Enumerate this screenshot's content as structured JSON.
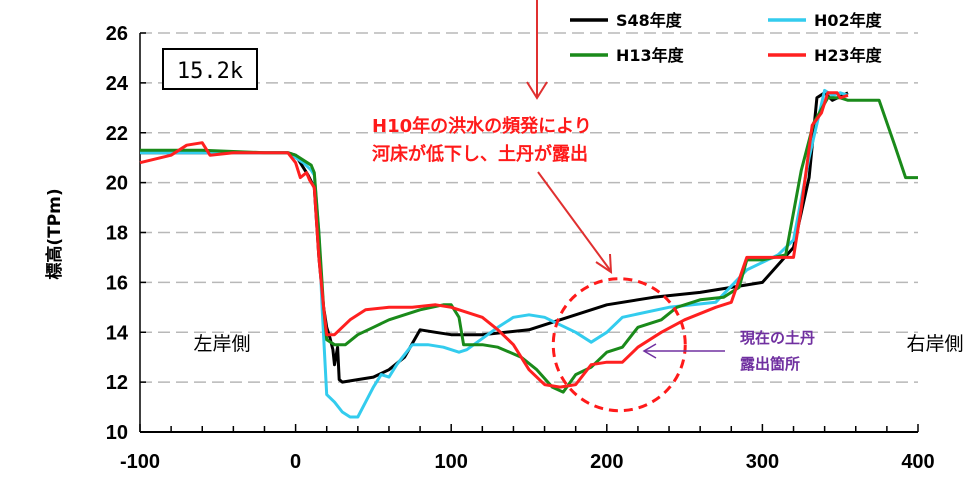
{
  "chart_data": {
    "type": "line",
    "xlim": [
      -100,
      400
    ],
    "ylim": [
      10,
      26
    ],
    "xticks": [
      -100,
      0,
      100,
      200,
      300,
      400
    ],
    "yticks": [
      10,
      12,
      14,
      16,
      18,
      20,
      22,
      24,
      26
    ],
    "ylabel": "標高(TPm)",
    "xlabel": "",
    "grid": "horizontal dashed",
    "legend_position": "top-right",
    "section_label": "15.2k",
    "left_bank_label": "左岸側",
    "right_bank_label": "右岸側",
    "annotation_red_line1": "H10年の洪水の頻発により",
    "annotation_red_line2": "河床が低下し、土丹が露出",
    "annotation_purple_line1": "現在の土丹",
    "annotation_purple_line2": "露出箇所",
    "highlight_circle_center": [
      208,
      13.5
    ],
    "series": [
      {
        "name": "S48年度",
        "color": "#000000",
        "points": [
          [
            -100,
            21.2
          ],
          [
            -60,
            21.2
          ],
          [
            -20,
            21.2
          ],
          [
            -5,
            21.2
          ],
          [
            0,
            21.1
          ],
          [
            5,
            20.6
          ],
          [
            8,
            20.3
          ],
          [
            12,
            19.8
          ],
          [
            15,
            17
          ],
          [
            18,
            15
          ],
          [
            20,
            14.2
          ],
          [
            22,
            13.8
          ],
          [
            24,
            13.3
          ],
          [
            25,
            12.7
          ],
          [
            27,
            13.4
          ],
          [
            28,
            12.1
          ],
          [
            30,
            12
          ],
          [
            40,
            12.1
          ],
          [
            50,
            12.2
          ],
          [
            60,
            12.5
          ],
          [
            70,
            13
          ],
          [
            80,
            14.1
          ],
          [
            90,
            14
          ],
          [
            100,
            13.9
          ],
          [
            120,
            13.9
          ],
          [
            150,
            14.1
          ],
          [
            170,
            14.5
          ],
          [
            200,
            15.1
          ],
          [
            230,
            15.4
          ],
          [
            260,
            15.6
          ],
          [
            280,
            15.8
          ],
          [
            300,
            16
          ],
          [
            320,
            17.4
          ],
          [
            330,
            20.2
          ],
          [
            335,
            23.4
          ],
          [
            340,
            23.6
          ],
          [
            345,
            23.3
          ],
          [
            355,
            23.6
          ]
        ]
      },
      {
        "name": "H02年度",
        "color": "#33ccee",
        "points": [
          [
            -100,
            21.2
          ],
          [
            -60,
            21.2
          ],
          [
            -20,
            21.2
          ],
          [
            -5,
            21.2
          ],
          [
            0,
            21
          ],
          [
            5,
            20.8
          ],
          [
            10,
            20.5
          ],
          [
            12,
            20.3
          ],
          [
            15,
            18
          ],
          [
            17,
            15
          ],
          [
            20,
            11.5
          ],
          [
            25,
            11.2
          ],
          [
            30,
            10.8
          ],
          [
            35,
            10.6
          ],
          [
            40,
            10.6
          ],
          [
            45,
            11.2
          ],
          [
            50,
            11.8
          ],
          [
            55,
            12.3
          ],
          [
            60,
            12.2
          ],
          [
            65,
            12.7
          ],
          [
            75,
            13.5
          ],
          [
            85,
            13.5
          ],
          [
            95,
            13.4
          ],
          [
            105,
            13.2
          ],
          [
            110,
            13.3
          ],
          [
            130,
            14.2
          ],
          [
            140,
            14.6
          ],
          [
            150,
            14.7
          ],
          [
            160,
            14.6
          ],
          [
            170,
            14.3
          ],
          [
            180,
            14
          ],
          [
            190,
            13.6
          ],
          [
            200,
            14
          ],
          [
            210,
            14.6
          ],
          [
            240,
            15
          ],
          [
            270,
            15.2
          ],
          [
            290,
            16.5
          ],
          [
            310,
            17.1
          ],
          [
            320,
            17.7
          ],
          [
            330,
            21
          ],
          [
            340,
            23.7
          ],
          [
            345,
            23.5
          ],
          [
            350,
            23.6
          ],
          [
            355,
            23.5
          ]
        ]
      },
      {
        "name": "H13年度",
        "color": "#1a8a1a",
        "points": [
          [
            -100,
            21.3
          ],
          [
            -60,
            21.3
          ],
          [
            -20,
            21.2
          ],
          [
            -5,
            21.2
          ],
          [
            0,
            21.1
          ],
          [
            5,
            20.9
          ],
          [
            10,
            20.7
          ],
          [
            12,
            20.4
          ],
          [
            15,
            18
          ],
          [
            18,
            15
          ],
          [
            20,
            13.7
          ],
          [
            25,
            13.5
          ],
          [
            32,
            13.5
          ],
          [
            40,
            13.9
          ],
          [
            50,
            14.2
          ],
          [
            60,
            14.5
          ],
          [
            70,
            14.7
          ],
          [
            80,
            14.9
          ],
          [
            95,
            15.1
          ],
          [
            100,
            15.1
          ],
          [
            105,
            14.6
          ],
          [
            108,
            13.5
          ],
          [
            120,
            13.5
          ],
          [
            130,
            13.4
          ],
          [
            145,
            13
          ],
          [
            155,
            12.5
          ],
          [
            165,
            11.8
          ],
          [
            172,
            11.6
          ],
          [
            180,
            12.3
          ],
          [
            190,
            12.6
          ],
          [
            200,
            13.2
          ],
          [
            210,
            13.4
          ],
          [
            220,
            14.2
          ],
          [
            235,
            14.5
          ],
          [
            245,
            15
          ],
          [
            260,
            15.3
          ],
          [
            275,
            15.4
          ],
          [
            285,
            15.8
          ],
          [
            290,
            16.9
          ],
          [
            300,
            16.9
          ],
          [
            315,
            17.1
          ],
          [
            325,
            20.5
          ],
          [
            333,
            22.4
          ],
          [
            342,
            23.4
          ],
          [
            350,
            23.4
          ],
          [
            355,
            23.3
          ],
          [
            375,
            23.3
          ],
          [
            385,
            21.5
          ],
          [
            392,
            20.2
          ],
          [
            400,
            20.2
          ]
        ]
      },
      {
        "name": "H23年度",
        "color": "#ff2020",
        "points": [
          [
            -100,
            20.8
          ],
          [
            -80,
            21.1
          ],
          [
            -70,
            21.5
          ],
          [
            -60,
            21.6
          ],
          [
            -55,
            21.1
          ],
          [
            -40,
            21.2
          ],
          [
            -20,
            21.2
          ],
          [
            -5,
            21.2
          ],
          [
            0,
            20.8
          ],
          [
            3,
            20.2
          ],
          [
            7,
            20.4
          ],
          [
            9,
            20.1
          ],
          [
            12,
            19.8
          ],
          [
            15,
            17
          ],
          [
            18,
            15
          ],
          [
            20,
            13.9
          ],
          [
            25,
            13.9
          ],
          [
            35,
            14.5
          ],
          [
            45,
            14.9
          ],
          [
            60,
            15
          ],
          [
            75,
            15
          ],
          [
            90,
            15.1
          ],
          [
            100,
            15
          ],
          [
            110,
            14.8
          ],
          [
            120,
            14.6
          ],
          [
            130,
            14.1
          ],
          [
            140,
            13.5
          ],
          [
            150,
            12.5
          ],
          [
            160,
            11.9
          ],
          [
            170,
            11.8
          ],
          [
            180,
            11.9
          ],
          [
            190,
            12.7
          ],
          [
            200,
            12.8
          ],
          [
            210,
            12.8
          ],
          [
            220,
            13.4
          ],
          [
            235,
            14
          ],
          [
            250,
            14.5
          ],
          [
            270,
            15
          ],
          [
            280,
            15.2
          ],
          [
            290,
            17
          ],
          [
            310,
            17
          ],
          [
            320,
            17
          ],
          [
            325,
            19
          ],
          [
            332,
            22.3
          ],
          [
            338,
            22.8
          ],
          [
            342,
            23.6
          ],
          [
            348,
            23.6
          ],
          [
            350,
            23.4
          ],
          [
            355,
            23.5
          ]
        ]
      }
    ]
  }
}
